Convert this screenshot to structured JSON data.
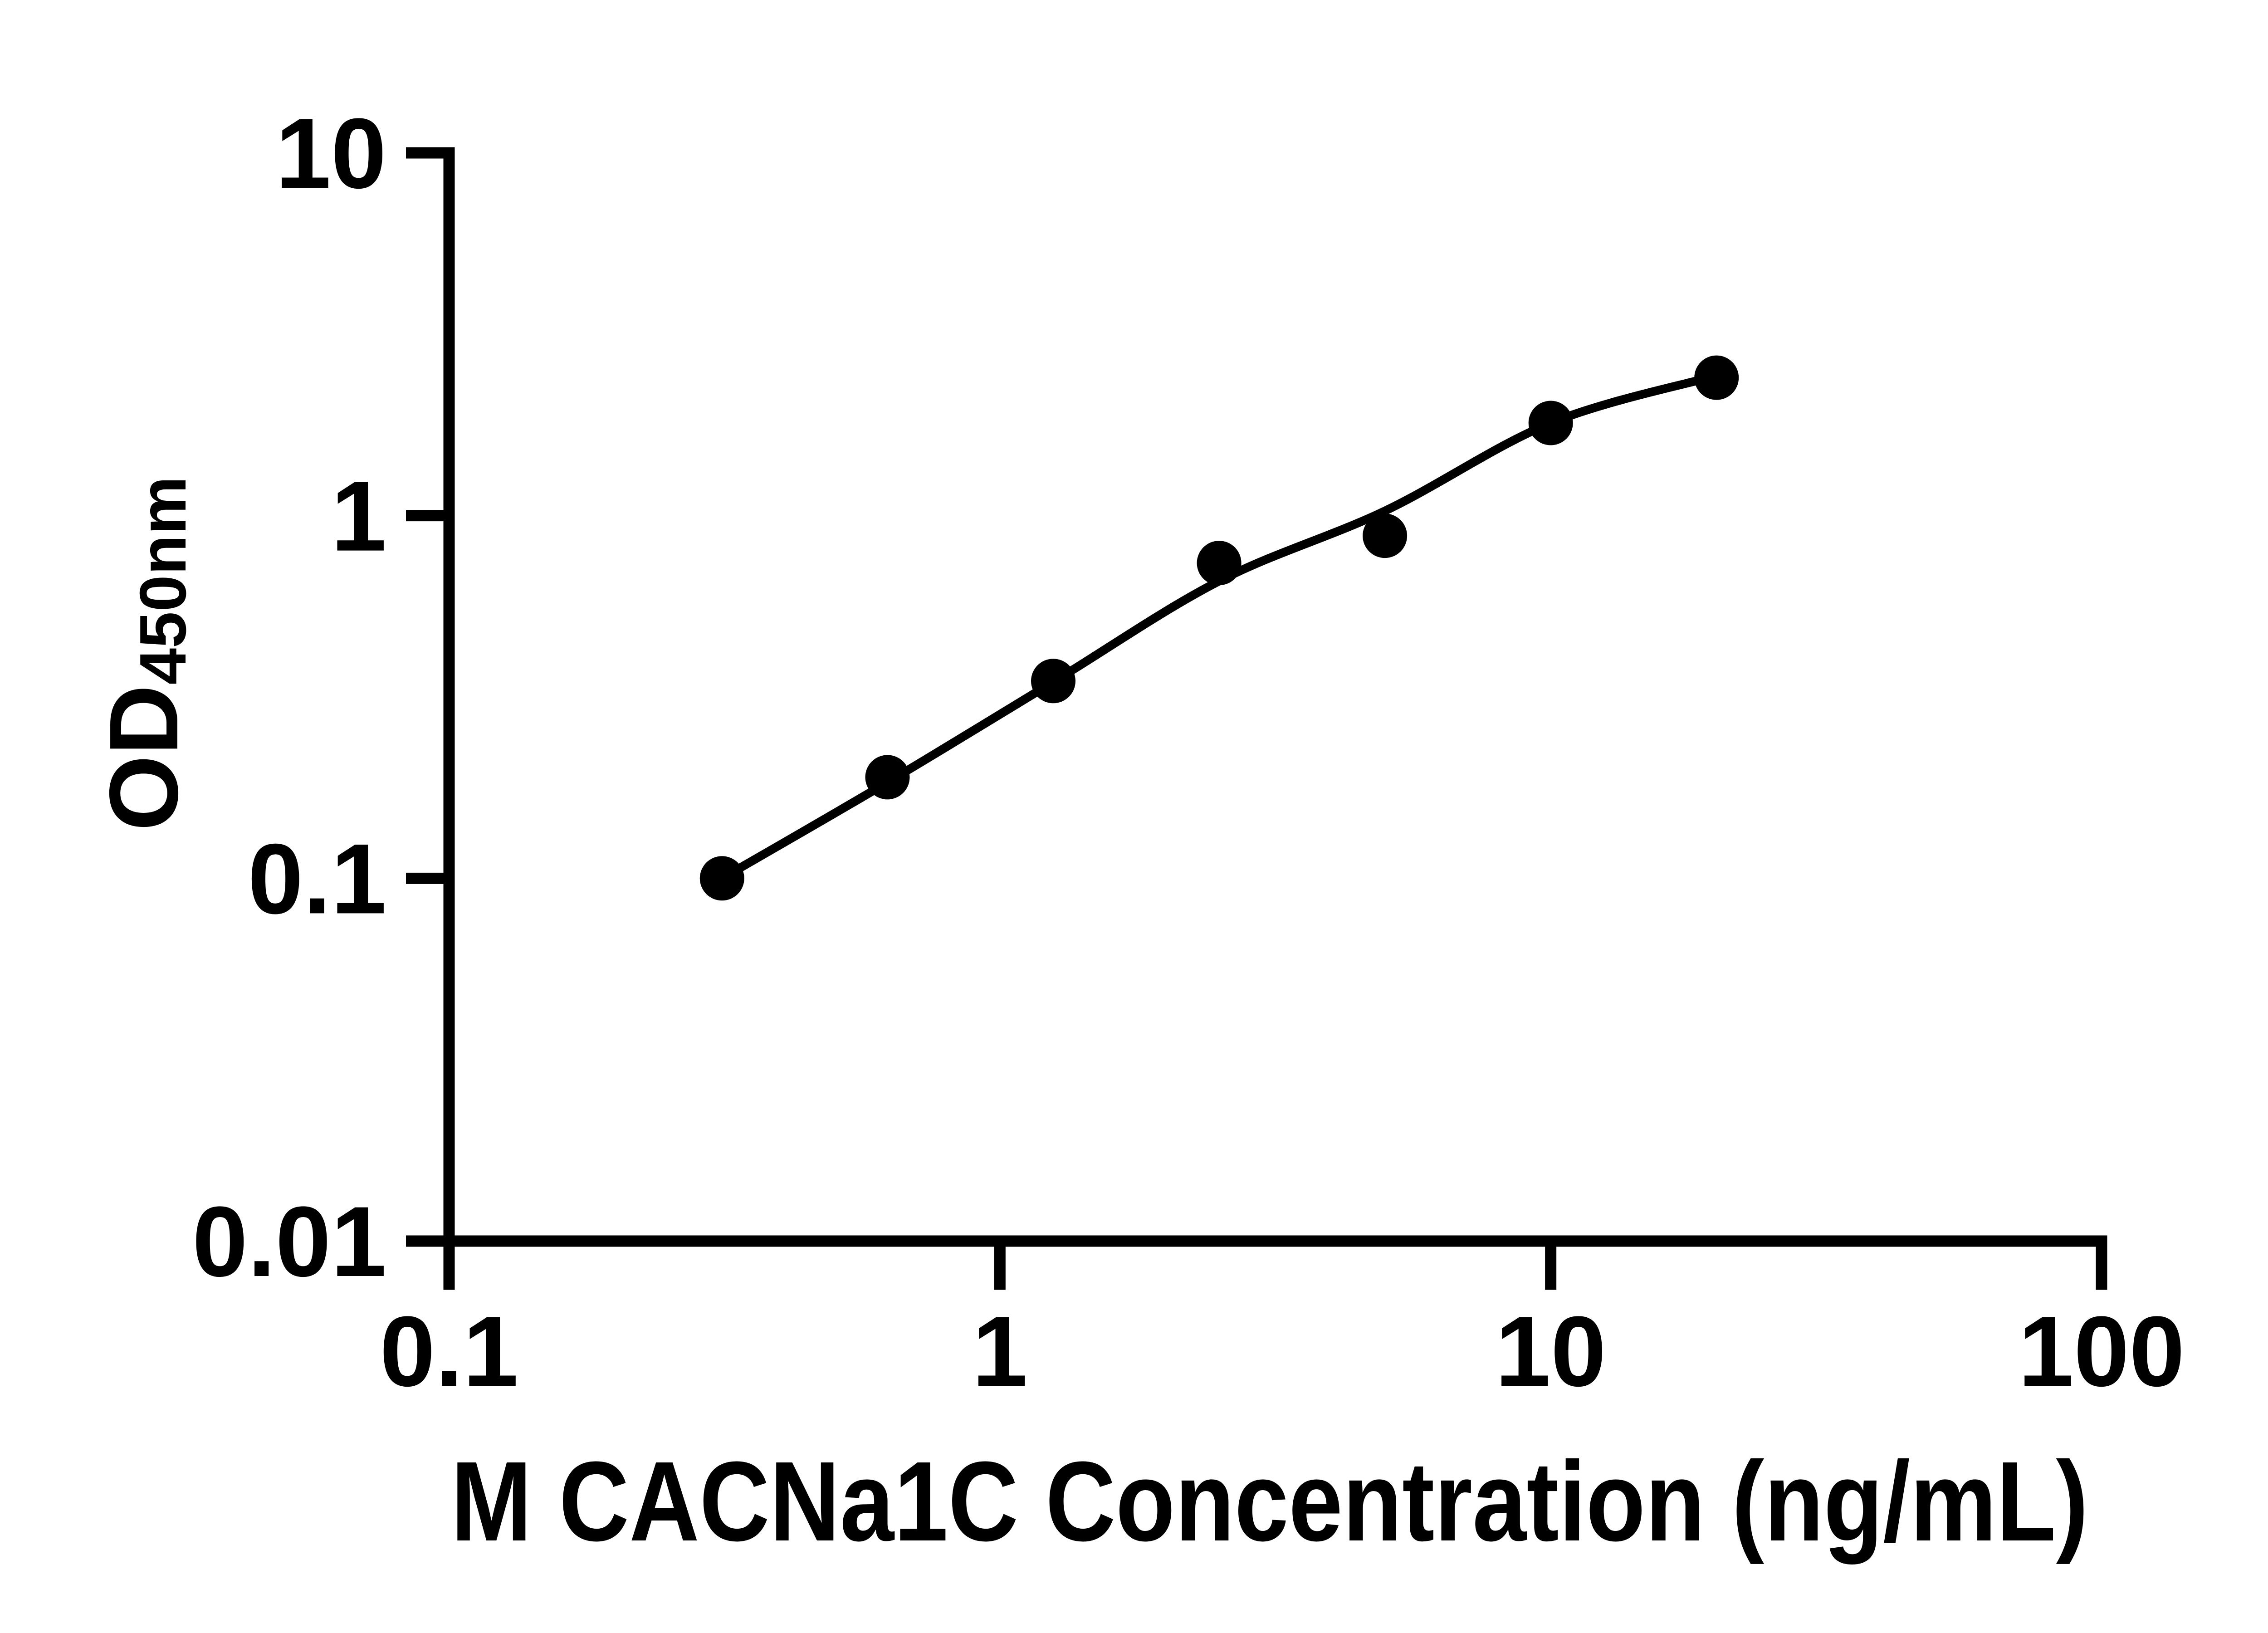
{
  "figure": {
    "background_color": "#ffffff",
    "ink_color": "#000000"
  },
  "chart_data": {
    "type": "scatter",
    "subtype": "ELISA standard curve with fitted line",
    "title": "",
    "xlabel": "M CACNa1C Concentration (ng/mL)",
    "ylabel_main": "OD",
    "ylabel_sub": "450nm",
    "x_scale": "log",
    "y_scale": "log",
    "xlim": [
      0.1,
      100
    ],
    "ylim": [
      0.01,
      10
    ],
    "x_ticks": [
      "0.1",
      "1",
      "10",
      "100"
    ],
    "y_ticks": [
      "10",
      "1",
      "0.1",
      "0.01"
    ],
    "grid": false,
    "legend": null,
    "marker_color": "#000000",
    "line_color": "#000000",
    "points": [
      {
        "x": 0.313,
        "y": 0.1
      },
      {
        "x": 0.625,
        "y": 0.19
      },
      {
        "x": 1.25,
        "y": 0.35
      },
      {
        "x": 2.5,
        "y": 0.74
      },
      {
        "x": 5,
        "y": 0.88
      },
      {
        "x": 10,
        "y": 1.8
      },
      {
        "x": 20,
        "y": 2.4
      }
    ],
    "fit_curve": {
      "x": [
        0.313,
        0.625,
        1.25,
        2.5,
        5,
        10,
        20
      ],
      "y": [
        0.1,
        0.184,
        0.348,
        0.66,
        1.03,
        1.8,
        2.43
      ]
    }
  }
}
